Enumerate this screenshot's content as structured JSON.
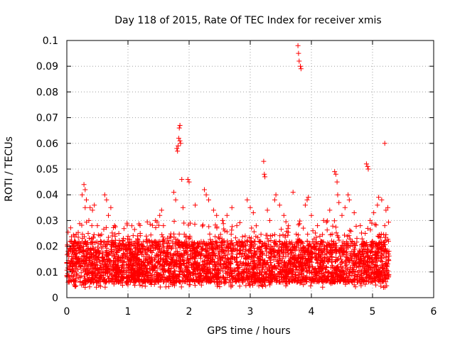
{
  "chart_data": {
    "type": "scatter",
    "title": "Day 118 of 2015, Rate Of TEC Index for receiver xmis",
    "xlabel": "GPS time / hours",
    "ylabel": "ROTI / TECUs",
    "xlim": [
      0,
      6
    ],
    "ylim": [
      0,
      0.1
    ],
    "x_ticks": [
      0,
      1,
      2,
      3,
      4,
      5,
      6
    ],
    "y_ticks": [
      0,
      0.01,
      0.02,
      0.03,
      0.04,
      0.05,
      0.06,
      0.07,
      0.08,
      0.09,
      0.1
    ],
    "x_tick_labels": [
      "0",
      "1",
      "2",
      "3",
      "4",
      "5",
      "6"
    ],
    "y_tick_labels": [
      "0",
      "0.01",
      "0.02",
      "0.03",
      "0.04",
      "0.05",
      "0.06",
      "0.07",
      "0.08",
      "0.09",
      "0.1"
    ],
    "grid": true,
    "marker": "+",
    "color": "#ff0000",
    "series": [
      {
        "name": "ROTI",
        "points": [
          [
            0.02,
            0.018
          ],
          [
            0.05,
            0.012
          ],
          [
            0.08,
            0.022
          ],
          [
            0.1,
            0.01
          ],
          [
            0.14,
            0.016
          ],
          [
            0.28,
            0.044
          ],
          [
            0.3,
            0.042
          ],
          [
            0.25,
            0.04
          ],
          [
            0.32,
            0.038
          ],
          [
            0.3,
            0.035
          ],
          [
            0.38,
            0.035
          ],
          [
            0.42,
            0.034
          ],
          [
            0.45,
            0.036
          ],
          [
            0.36,
            0.03
          ],
          [
            0.5,
            0.028
          ],
          [
            0.62,
            0.04
          ],
          [
            0.65,
            0.038
          ],
          [
            0.68,
            0.032
          ],
          [
            0.72,
            0.035
          ],
          [
            0.78,
            0.028
          ],
          [
            0.85,
            0.025
          ],
          [
            0.92,
            0.022
          ],
          [
            0.95,
            0.02
          ],
          [
            1.2,
            0.025
          ],
          [
            1.3,
            0.022
          ],
          [
            1.45,
            0.03
          ],
          [
            1.52,
            0.032
          ],
          [
            1.58,
            0.028
          ],
          [
            1.55,
            0.034
          ],
          [
            1.8,
            0.058
          ],
          [
            1.81,
            0.057
          ],
          [
            1.82,
            0.059
          ],
          [
            1.83,
            0.062
          ],
          [
            1.84,
            0.066
          ],
          [
            1.85,
            0.067
          ],
          [
            1.85,
            0.061
          ],
          [
            1.86,
            0.06
          ],
          [
            1.88,
            0.046
          ],
          [
            1.98,
            0.046
          ],
          [
            2.0,
            0.045
          ],
          [
            1.75,
            0.041
          ],
          [
            1.78,
            0.038
          ],
          [
            1.9,
            0.035
          ],
          [
            2.1,
            0.036
          ],
          [
            2.25,
            0.042
          ],
          [
            2.28,
            0.04
          ],
          [
            2.32,
            0.038
          ],
          [
            2.4,
            0.034
          ],
          [
            2.45,
            0.032
          ],
          [
            2.55,
            0.03
          ],
          [
            2.62,
            0.032
          ],
          [
            2.7,
            0.035
          ],
          [
            2.78,
            0.028
          ],
          [
            2.95,
            0.038
          ],
          [
            3.0,
            0.035
          ],
          [
            3.05,
            0.033
          ],
          [
            3.22,
            0.053
          ],
          [
            3.23,
            0.048
          ],
          [
            3.24,
            0.047
          ],
          [
            3.28,
            0.034
          ],
          [
            3.32,
            0.03
          ],
          [
            3.4,
            0.038
          ],
          [
            3.42,
            0.04
          ],
          [
            3.48,
            0.036
          ],
          [
            3.55,
            0.032
          ],
          [
            3.7,
            0.041
          ],
          [
            3.78,
            0.098
          ],
          [
            3.79,
            0.095
          ],
          [
            3.8,
            0.092
          ],
          [
            3.82,
            0.09
          ],
          [
            3.83,
            0.089
          ],
          [
            3.9,
            0.036
          ],
          [
            3.93,
            0.038
          ],
          [
            3.95,
            0.039
          ],
          [
            4.0,
            0.032
          ],
          [
            4.1,
            0.028
          ],
          [
            4.2,
            0.03
          ],
          [
            4.3,
            0.034
          ],
          [
            4.38,
            0.049
          ],
          [
            4.4,
            0.048
          ],
          [
            4.42,
            0.045
          ],
          [
            4.43,
            0.04
          ],
          [
            4.45,
            0.037
          ],
          [
            4.5,
            0.032
          ],
          [
            4.55,
            0.035
          ],
          [
            4.6,
            0.04
          ],
          [
            4.62,
            0.038
          ],
          [
            4.7,
            0.033
          ],
          [
            4.8,
            0.028
          ],
          [
            4.88,
            0.025
          ],
          [
            4.9,
            0.052
          ],
          [
            4.92,
            0.051
          ],
          [
            4.93,
            0.05
          ],
          [
            4.96,
            0.03
          ],
          [
            5.02,
            0.033
          ],
          [
            5.08,
            0.036
          ],
          [
            5.1,
            0.039
          ],
          [
            5.15,
            0.038
          ],
          [
            5.2,
            0.06
          ],
          [
            5.22,
            0.034
          ],
          [
            5.25,
            0.035
          ],
          [
            5.18,
            0.004
          ],
          [
            5.24,
            0.012
          ],
          [
            5.26,
            0.008
          ],
          [
            5.2,
            0.028
          ],
          [
            5.0,
            0.006
          ],
          [
            4.7,
            0.005
          ],
          [
            4.2,
            0.006
          ],
          [
            3.5,
            0.006
          ],
          [
            3.0,
            0.005
          ],
          [
            2.5,
            0.006
          ],
          [
            2.0,
            0.005
          ],
          [
            1.5,
            0.006
          ],
          [
            1.0,
            0.005
          ],
          [
            0.5,
            0.006
          ],
          [
            0.3,
            0.004
          ],
          [
            0.12,
            0.005
          ]
        ],
        "dense_band": {
          "x_range": [
            0,
            5.27
          ],
          "y_floor": 0.004,
          "y_typical": [
            0.006,
            0.022
          ],
          "y_occasional_max": 0.03,
          "approx_points": 3800
        }
      }
    ]
  }
}
